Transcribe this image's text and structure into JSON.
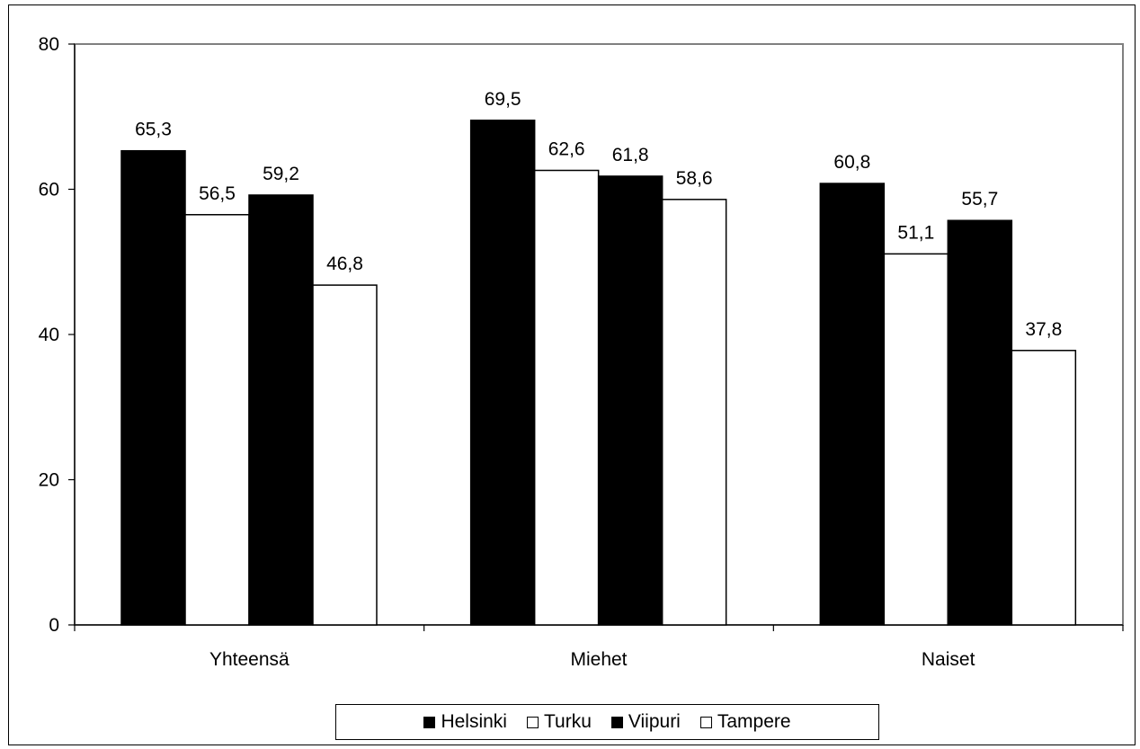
{
  "chart_data": {
    "type": "bar",
    "title": "",
    "xlabel": "",
    "ylabel": "",
    "categories": [
      "Yhteensä",
      "Miehet",
      "Naiset"
    ],
    "series": [
      {
        "name": "Helsinki",
        "values": [
          65.3,
          69.5,
          60.8
        ],
        "color": "#000000"
      },
      {
        "name": "Turku",
        "values": [
          56.5,
          62.6,
          51.1
        ],
        "color": "#ffffff"
      },
      {
        "name": "Viipuri",
        "values": [
          59.2,
          61.8,
          55.7
        ],
        "color": "#000000"
      },
      {
        "name": "Tampere",
        "values": [
          46.8,
          58.6,
          37.8
        ],
        "color": "#ffffff"
      }
    ],
    "data_labels": [
      [
        "65,3",
        "69,5",
        "60,8"
      ],
      [
        "56,5",
        "62,6",
        "51,1"
      ],
      [
        "59,2",
        "61,8",
        "55,7"
      ],
      [
        "46,8",
        "58,6",
        "37,8"
      ]
    ],
    "ylim": [
      0,
      80
    ],
    "yticks": [
      0,
      20,
      40,
      60,
      80
    ],
    "ytick_labels": [
      "0",
      "20",
      "40",
      "60",
      "80"
    ],
    "grid": false,
    "legend_position": "bottom"
  }
}
